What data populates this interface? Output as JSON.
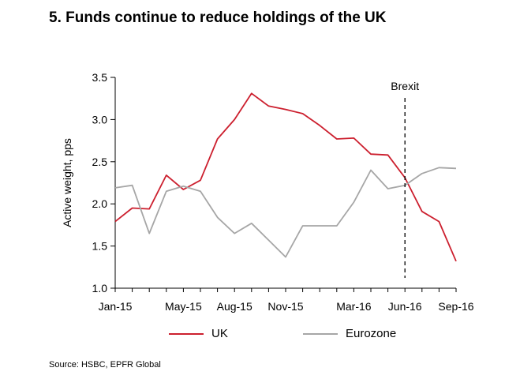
{
  "title": "5. Funds continue to reduce holdings of the UK",
  "source": "Source:  HSBC, EPFR Global",
  "colors": {
    "uk": "#cc1f2e",
    "eurozone": "#a6a6a6",
    "axis": "#000000"
  },
  "chart_data": {
    "type": "line",
    "title": "5. Funds continue to reduce holdings of the UK",
    "ylabel": "Active weight, pps",
    "xlabel": "",
    "ylim": [
      1.0,
      3.5
    ],
    "yticks": [
      "1.0",
      "1.5",
      "2.0",
      "2.5",
      "3.0",
      "3.5"
    ],
    "x": [
      "Jan-15",
      "Feb-15",
      "Mar-15",
      "Apr-15",
      "May-15",
      "Jun-15",
      "Jul-15",
      "Aug-15",
      "Sep-15",
      "Oct-15",
      "Nov-15",
      "Dec-15",
      "Jan-16",
      "Feb-16",
      "Mar-16",
      "Apr-16",
      "May-16",
      "Jun-16",
      "Jul-16",
      "Aug-16",
      "Sep-16"
    ],
    "xtick_labels": [
      "Jan-15",
      "May-15",
      "Aug-15",
      "Nov-15",
      "Mar-16",
      "Jun-16",
      "Sep-16"
    ],
    "series": [
      {
        "name": "UK",
        "color": "#cc1f2e",
        "values": [
          1.79,
          1.95,
          1.94,
          2.34,
          2.17,
          2.28,
          2.77,
          3.0,
          3.31,
          3.16,
          3.12,
          3.07,
          2.93,
          2.77,
          2.78,
          2.59,
          2.58,
          2.31,
          1.91,
          1.79,
          1.32
        ]
      },
      {
        "name": "Eurozone",
        "color": "#a6a6a6",
        "values": [
          2.19,
          2.22,
          1.65,
          2.15,
          2.21,
          2.15,
          1.84,
          1.65,
          1.77,
          1.57,
          1.37,
          1.74,
          1.74,
          1.74,
          2.02,
          2.4,
          2.18,
          2.22,
          2.36,
          2.43,
          2.42
        ]
      }
    ],
    "annotations": [
      {
        "text": "Brexit",
        "x": "Jun-16",
        "style": "dashed-vertical-line"
      }
    ],
    "grid": false,
    "legend": "bottom"
  }
}
